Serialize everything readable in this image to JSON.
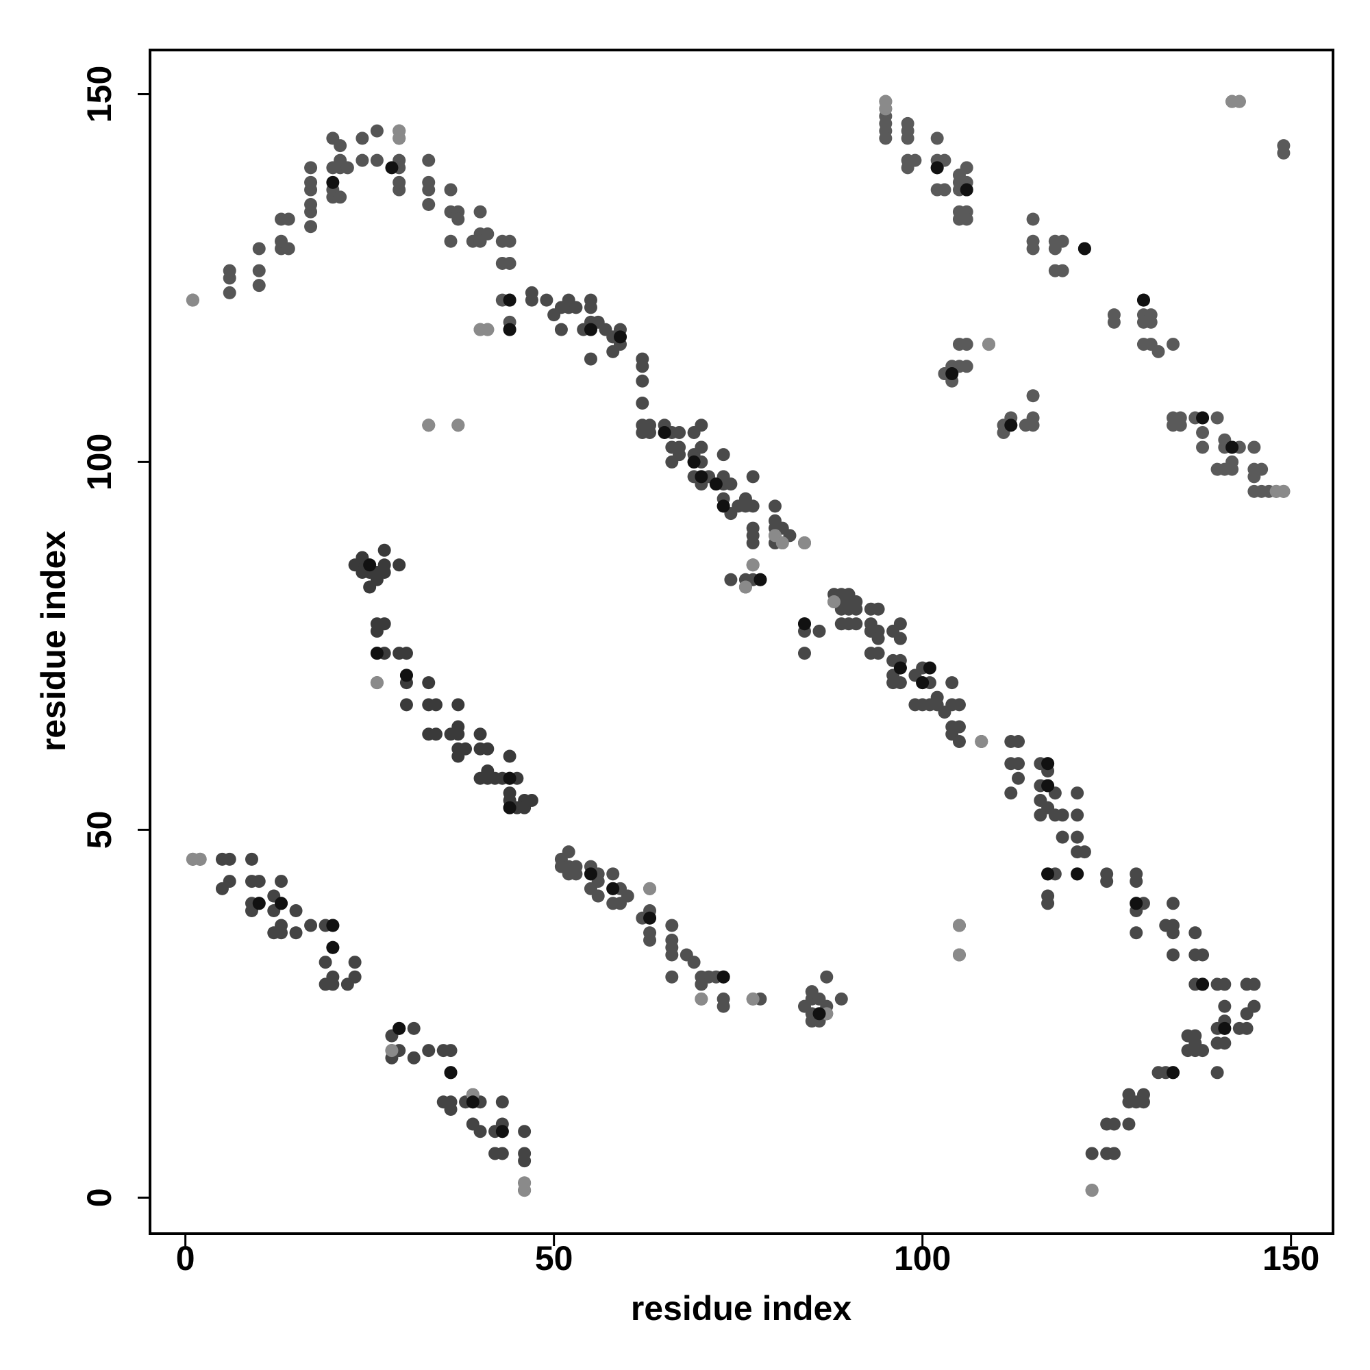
{
  "chart_data": {
    "type": "scatter",
    "xlabel": "residue index",
    "ylabel": "residue index",
    "xlim": [
      -4.8,
      155.7
    ],
    "ylim": [
      -4.9,
      156
    ],
    "xticks": [
      0,
      50,
      100,
      150
    ],
    "yticks": [
      0,
      50,
      100,
      150
    ],
    "grid": false,
    "series": [
      {
        "color": "#444444",
        "x": [
          1,
          2,
          5,
          6,
          9,
          5,
          6,
          9,
          10,
          9,
          9,
          10,
          12,
          13,
          12,
          13,
          15,
          12,
          13,
          13,
          15,
          17,
          19,
          20,
          20,
          19,
          19,
          20,
          20,
          23,
          23,
          22,
          28,
          29,
          31,
          28,
          29,
          28,
          31,
          33,
          35,
          36,
          36,
          35,
          36,
          36,
          38,
          39,
          40,
          39,
          39,
          40,
          42,
          43,
          43,
          43,
          42,
          43,
          46,
          46,
          46,
          46,
          46
        ],
        "values": [
          46,
          46,
          46,
          46,
          46,
          42,
          43,
          43,
          43,
          39,
          40,
          40,
          39,
          40,
          41,
          43,
          39,
          36,
          37,
          36,
          36,
          37,
          37,
          37,
          34,
          32,
          29,
          30,
          29,
          30,
          32,
          29,
          22,
          23,
          23,
          20,
          20,
          19,
          19,
          20,
          20,
          20,
          17,
          13,
          13,
          12,
          13,
          13,
          13,
          14,
          10,
          9,
          9,
          9,
          10,
          13,
          6,
          6,
          6,
          5,
          2,
          1,
          9
        ]
      },
      {
        "color": "#555555",
        "x": [
          1,
          6,
          6,
          6,
          10,
          10,
          10,
          13,
          13,
          14,
          13,
          14,
          17,
          17,
          17,
          17,
          17,
          17,
          20,
          20,
          21,
          20,
          21,
          21,
          22,
          20,
          21,
          24,
          24,
          26,
          26,
          29,
          29,
          29,
          29,
          29,
          29,
          33,
          33,
          33,
          33,
          36,
          36,
          37,
          37,
          40,
          40,
          39,
          40,
          41,
          36,
          43,
          43,
          44,
          44,
          43,
          44,
          44,
          44,
          40,
          41
        ],
        "values": [
          122,
          123,
          125,
          126,
          124,
          126,
          129,
          129,
          130,
          129,
          133,
          133,
          132,
          134,
          135,
          137,
          138,
          140,
          136,
          137,
          136,
          140,
          140,
          141,
          140,
          144,
          143,
          141,
          144,
          145,
          141,
          141,
          144,
          145,
          137,
          138,
          140,
          141,
          138,
          137,
          135,
          137,
          134,
          134,
          133,
          134,
          131,
          130,
          130,
          131,
          130,
          130,
          127,
          127,
          130,
          122,
          122,
          119,
          118,
          118,
          118
        ]
      },
      {
        "color": "#4a4a4a",
        "x": [
          47,
          47,
          49,
          50,
          51,
          51,
          52,
          52,
          53,
          54,
          55,
          55,
          55,
          55,
          56,
          57,
          58,
          59,
          59,
          58,
          59,
          55,
          62,
          62,
          62,
          62,
          62,
          62,
          63,
          63,
          65,
          66,
          66,
          67,
          66,
          67,
          67,
          69,
          69,
          69,
          70,
          70,
          70,
          69,
          70,
          70,
          71,
          72,
          73,
          73,
          73,
          74,
          73,
          73,
          74,
          75,
          76,
          76,
          77,
          77,
          77,
          77,
          77,
          80,
          80,
          80,
          80,
          81,
          82,
          80,
          81,
          84,
          77,
          76,
          77,
          78,
          76,
          74,
          33,
          37
        ],
        "values": [
          123,
          122,
          122,
          120,
          121,
          118,
          121,
          122,
          121,
          118,
          119,
          118,
          121,
          122,
          119,
          118,
          117,
          117,
          118,
          115,
          116,
          114,
          114,
          113,
          111,
          108,
          105,
          104,
          105,
          104,
          105,
          104,
          102,
          102,
          100,
          101,
          104,
          104,
          101,
          100,
          100,
          102,
          105,
          98,
          98,
          97,
          98,
          97,
          97,
          101,
          98,
          97,
          95,
          94,
          93,
          94,
          94,
          95,
          94,
          98,
          91,
          90,
          89,
          94,
          92,
          91,
          90,
          91,
          90,
          89,
          89,
          89,
          86,
          84,
          84,
          84,
          83,
          84,
          105,
          105
        ]
      },
      {
        "color": "#3a3a3a",
        "x": [
          23,
          24,
          25,
          24,
          25,
          26,
          27,
          27,
          26,
          25,
          29,
          27,
          24,
          26,
          26,
          27,
          26,
          27,
          29,
          30,
          26,
          30,
          30,
          30,
          33,
          33,
          34,
          33,
          34,
          36,
          37,
          37,
          37,
          40,
          37,
          37,
          38,
          40,
          41,
          40,
          41,
          41,
          42,
          43,
          44,
          44,
          44,
          44,
          45,
          44,
          45,
          46,
          46,
          47
        ],
        "values": [
          86,
          86,
          86,
          87,
          85,
          85,
          86,
          88,
          84,
          83,
          86,
          85,
          85,
          78,
          77,
          78,
          74,
          74,
          74,
          74,
          70,
          71,
          70,
          67,
          70,
          67,
          67,
          63,
          63,
          63,
          64,
          63,
          67,
          63,
          60,
          61,
          61,
          61,
          61,
          57,
          57,
          58,
          57,
          57,
          57,
          60,
          55,
          54,
          57,
          53,
          53,
          54,
          53,
          54
        ]
      },
      {
        "color": "#505050",
        "x": [
          51,
          51,
          52,
          52,
          52,
          53,
          53,
          55,
          55,
          56,
          55,
          56,
          56,
          58,
          58,
          59,
          58,
          60,
          59,
          63,
          63,
          63,
          62,
          63,
          63,
          66,
          66,
          66,
          66,
          68,
          69,
          70,
          71,
          70,
          72,
          66,
          73,
          73,
          73,
          70,
          77,
          78,
          84,
          85,
          85,
          85,
          86,
          86,
          87,
          87,
          85,
          86,
          87,
          89
        ],
        "values": [
          46,
          45,
          44,
          45,
          47,
          45,
          44,
          45,
          44,
          44,
          42,
          43,
          41,
          44,
          42,
          42,
          40,
          41,
          40,
          42,
          39,
          38,
          38,
          36,
          35,
          37,
          35,
          34,
          33,
          33,
          32,
          30,
          30,
          29,
          30,
          30,
          30,
          27,
          26,
          27,
          27,
          27,
          26,
          25,
          27,
          28,
          25,
          27,
          25,
          26,
          24,
          24,
          30,
          27
        ]
      },
      {
        "color": "#484848",
        "x": [
          84,
          84,
          84,
          86,
          88,
          89,
          88,
          89,
          90,
          90,
          91,
          91,
          89,
          90,
          89,
          90,
          91,
          93,
          94,
          93,
          93,
          94,
          94,
          93,
          94,
          96,
          97,
          97,
          96,
          97,
          97,
          96,
          96,
          97,
          99,
          100,
          100,
          101,
          99,
          100,
          101,
          102,
          102,
          103,
          104,
          105,
          104,
          104,
          105,
          104,
          105,
          108,
          112,
          113,
          112,
          113,
          113,
          112,
          116,
          117,
          117,
          116,
          117,
          116,
          117,
          118,
          116,
          118,
          119,
          119,
          121,
          121,
          121,
          121,
          122,
          121,
          117,
          118,
          117,
          117,
          125,
          125,
          129,
          129,
          129,
          129,
          130,
          129,
          134,
          133,
          134,
          134,
          134,
          137,
          137,
          138,
          137,
          138,
          140,
          141,
          141,
          140,
          141,
          141,
          143,
          144,
          144,
          145,
          144,
          145,
          141,
          140,
          137,
          137,
          136,
          136,
          137,
          138,
          140,
          134,
          133,
          132,
          130,
          130,
          129,
          128,
          128,
          128,
          126,
          125,
          123,
          125,
          126,
          123,
          105,
          105
        ],
        "values": [
          78,
          77,
          74,
          77,
          82,
          82,
          81,
          81,
          81,
          82,
          81,
          80,
          80,
          80,
          78,
          78,
          78,
          80,
          80,
          78,
          77,
          77,
          76,
          74,
          74,
          77,
          76,
          78,
          73,
          73,
          72,
          70,
          71,
          70,
          71,
          72,
          70,
          70,
          67,
          67,
          67,
          67,
          68,
          66,
          67,
          67,
          70,
          64,
          64,
          63,
          62,
          62,
          62,
          62,
          59,
          59,
          57,
          55,
          59,
          59,
          58,
          56,
          56,
          54,
          53,
          55,
          52,
          52,
          52,
          49,
          52,
          55,
          49,
          47,
          47,
          44,
          44,
          44,
          41,
          40,
          44,
          43,
          43,
          44,
          40,
          39,
          40,
          36,
          40,
          37,
          37,
          36,
          33,
          36,
          33,
          33,
          29,
          29,
          29,
          29,
          26,
          23,
          23,
          24,
          23,
          23,
          25,
          26,
          29,
          29,
          21,
          21,
          21,
          22,
          22,
          20,
          20,
          20,
          17,
          17,
          17,
          17,
          14,
          13,
          13,
          14,
          13,
          10,
          10,
          10,
          6,
          6,
          6,
          1,
          37,
          33
        ]
      },
      {
        "color": "#5a5a5a",
        "x": [
          95,
          95,
          95,
          95,
          95,
          95,
          98,
          98,
          98,
          102,
          98,
          98,
          99,
          102,
          102,
          103,
          102,
          103,
          105,
          105,
          105,
          106,
          106,
          106,
          105,
          106,
          105,
          106,
          115,
          115,
          115,
          118,
          118,
          119,
          122,
          118,
          119,
          126,
          126,
          130,
          130,
          130,
          131,
          131,
          130,
          131,
          134,
          132,
          103,
          104,
          104,
          105,
          106,
          106,
          105,
          104,
          109,
          111,
          111,
          112,
          112,
          114,
          115,
          115,
          115,
          134,
          134,
          135,
          135,
          137,
          138,
          140,
          138,
          138,
          141,
          141,
          142,
          143,
          142,
          142,
          140,
          141,
          145,
          145,
          145,
          146,
          145,
          146,
          147,
          148,
          149,
          142,
          143,
          149,
          149
        ],
        "values": [
          149,
          148,
          147,
          146,
          145,
          144,
          144,
          145,
          146,
          144,
          141,
          140,
          141,
          141,
          140,
          141,
          137,
          137,
          137,
          138,
          139,
          140,
          138,
          137,
          134,
          134,
          133,
          133,
          133,
          130,
          129,
          130,
          129,
          130,
          129,
          126,
          126,
          120,
          119,
          122,
          120,
          119,
          119,
          120,
          116,
          116,
          116,
          115,
          112,
          112,
          113,
          113,
          113,
          116,
          116,
          111,
          116,
          104,
          105,
          105,
          106,
          105,
          105,
          106,
          109,
          106,
          105,
          105,
          106,
          106,
          106,
          106,
          104,
          102,
          102,
          103,
          102,
          102,
          100,
          99,
          99,
          99,
          102,
          99,
          98,
          99,
          96,
          96,
          96,
          96,
          96,
          149,
          149,
          143,
          142
        ]
      },
      {
        "color": "#8a8a8a",
        "x": [
          1,
          1,
          2,
          29,
          29,
          37,
          33,
          40,
          41,
          77,
          76,
          80,
          81,
          84,
          26,
          46,
          46,
          123,
          105,
          105,
          95,
          95,
          142,
          143,
          149,
          148,
          108,
          109,
          88,
          87,
          70,
          77,
          63,
          39,
          28
        ],
        "values": [
          122,
          46,
          46,
          145,
          144,
          105,
          105,
          118,
          118,
          86,
          83,
          90,
          89,
          89,
          70,
          1,
          2,
          1,
          33,
          37,
          149,
          148,
          149,
          149,
          96,
          96,
          62,
          116,
          81,
          25,
          27,
          27,
          42,
          14,
          20
        ]
      },
      {
        "color": "#111111",
        "x": [
          28,
          20,
          44,
          44,
          55,
          59,
          65,
          69,
          70,
          72,
          73,
          78,
          25,
          26,
          30,
          44,
          44,
          10,
          13,
          20,
          20,
          29,
          36,
          39,
          43,
          55,
          58,
          63,
          73,
          86,
          84,
          97,
          100,
          101,
          117,
          117,
          121,
          117,
          129,
          138,
          141,
          134,
          130,
          122,
          102,
          106,
          104,
          112,
          138,
          142
        ],
        "values": [
          140,
          138,
          122,
          118,
          118,
          117,
          104,
          100,
          98,
          97,
          94,
          84,
          86,
          74,
          71,
          57,
          53,
          40,
          40,
          37,
          34,
          23,
          17,
          13,
          9,
          44,
          42,
          38,
          30,
          25,
          78,
          72,
          70,
          72,
          56,
          59,
          44,
          44,
          40,
          29,
          23,
          17,
          122,
          129,
          140,
          137,
          112,
          105,
          106,
          102
        ]
      }
    ]
  }
}
